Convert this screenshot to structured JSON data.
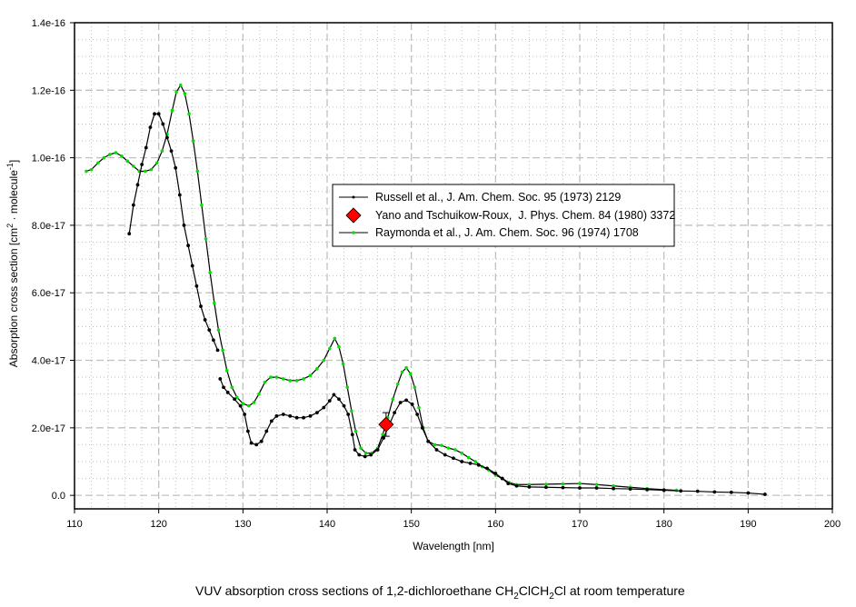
{
  "chart_data": {
    "type": "line",
    "xlabel": "Wavelength [nm]",
    "ylabel_main": "Absorption cross section [cm",
    "ylabel_sup1": "2",
    "ylabel_mid": " · molecule",
    "ylabel_sup2": "-1",
    "ylabel_end": "]",
    "caption_main": "VUV absorption cross sections of 1,2-dichloroethane CH",
    "caption_parts": [
      "2",
      "ClCH",
      "2",
      "Cl at room temperature"
    ],
    "xlim": [
      110,
      200
    ],
    "ylim": [
      -4e-18,
      1.4e-16
    ],
    "x_ticks": [
      "110",
      "120",
      "130",
      "140",
      "150",
      "160",
      "170",
      "180",
      "190",
      "200"
    ],
    "y_ticks": [
      "0.0",
      "2.0e-17",
      "4.0e-17",
      "6.0e-17",
      "8.0e-17",
      "1.0e-16",
      "1.2e-16",
      "1.4e-16"
    ],
    "grid": true,
    "legend_placement": "center-right",
    "colors": {
      "russell": "#000000",
      "yano": "#ff0000",
      "raymonda": "#00e000",
      "grid": "#c0c0c0"
    },
    "series": [
      {
        "name": "Russell et al., J. Am. Chem. Soc. 95 (1973) 2129",
        "segments": [
          [
            [
              116.5,
              7.75e-17
            ],
            [
              117,
              8.6e-17
            ],
            [
              117.5,
              9.2e-17
            ],
            [
              118,
              9.8e-17
            ],
            [
              118.5,
              1.03e-16
            ],
            [
              119,
              1.09e-16
            ],
            [
              119.5,
              1.13e-16
            ],
            [
              120,
              1.13e-16
            ],
            [
              120.5,
              1.1e-16
            ],
            [
              121,
              1.06e-16
            ],
            [
              121.5,
              1.02e-16
            ],
            [
              122,
              9.7e-17
            ],
            [
              122.5,
              8.9e-17
            ],
            [
              123,
              8e-17
            ],
            [
              123.5,
              7.4e-17
            ],
            [
              124,
              6.8e-17
            ],
            [
              124.5,
              6.2e-17
            ],
            [
              125,
              5.6e-17
            ],
            [
              125.5,
              5.2e-17
            ],
            [
              126,
              4.9e-17
            ],
            [
              126.5,
              4.6e-17
            ],
            [
              127,
              4.3e-17
            ]
          ],
          [
            [
              127.3,
              3.45e-17
            ],
            [
              127.7,
              3.2e-17
            ],
            [
              128.2,
              3.05e-17
            ],
            [
              129,
              2.85e-17
            ],
            [
              129.7,
              2.65e-17
            ],
            [
              130.2,
              2.4e-17
            ],
            [
              130.6,
              1.9e-17
            ],
            [
              131,
              1.55e-17
            ],
            [
              131.6,
              1.5e-17
            ],
            [
              132.2,
              1.6e-17
            ],
            [
              132.8,
              1.9e-17
            ],
            [
              133.4,
              2.2e-17
            ],
            [
              134,
              2.35e-17
            ],
            [
              134.8,
              2.4e-17
            ],
            [
              135.6,
              2.35e-17
            ],
            [
              136.4,
              2.3e-17
            ],
            [
              137.2,
              2.3e-17
            ],
            [
              138,
              2.35e-17
            ],
            [
              138.8,
              2.45e-17
            ],
            [
              139.6,
              2.6e-17
            ],
            [
              140.3,
              2.8e-17
            ],
            [
              140.8,
              2.98e-17
            ],
            [
              141.4,
              2.85e-17
            ],
            [
              142,
              2.65e-17
            ],
            [
              142.5,
              2.4e-17
            ],
            [
              143,
              1.8e-17
            ],
            [
              143.3,
              1.35e-17
            ],
            [
              143.8,
              1.2e-17
            ],
            [
              144.5,
              1.15e-17
            ],
            [
              145.2,
              1.2e-17
            ],
            [
              146,
              1.35e-17
            ],
            [
              146.7,
              1.7e-17
            ],
            [
              147.4,
              2.1e-17
            ],
            [
              148,
              2.45e-17
            ],
            [
              148.7,
              2.75e-17
            ],
            [
              149.4,
              2.82e-17
            ],
            [
              150.1,
              2.7e-17
            ],
            [
              150.7,
              2.4e-17
            ],
            [
              151.3,
              2e-17
            ],
            [
              152,
              1.6e-17
            ],
            [
              153,
              1.35e-17
            ],
            [
              154,
              1.2e-17
            ],
            [
              155,
              1.1e-17
            ],
            [
              156,
              1e-17
            ],
            [
              157,
              9.5e-18
            ],
            [
              158,
              9e-18
            ],
            [
              159,
              8e-18
            ],
            [
              160,
              6.5e-18
            ],
            [
              160.8,
              5e-18
            ],
            [
              161.5,
              3.5e-18
            ],
            [
              162.5,
              2.8e-18
            ],
            [
              164,
              2.5e-18
            ],
            [
              166,
              2.4e-18
            ],
            [
              168,
              2.3e-18
            ],
            [
              170,
              2.2e-18
            ],
            [
              172,
              2.2e-18
            ],
            [
              174,
              2e-18
            ],
            [
              176,
              1.9e-18
            ],
            [
              178,
              1.7e-18
            ],
            [
              180,
              1.5e-18
            ],
            [
              182,
              1.3e-18
            ],
            [
              184,
              1.2e-18
            ],
            [
              186,
              1e-18
            ],
            [
              188,
              9e-19
            ],
            [
              190,
              7e-19
            ],
            [
              192,
              3e-19
            ]
          ]
        ]
      },
      {
        "name": "Yano and Tschuikow-Roux,  J. Phys. Chem. 84 (1980) 3372",
        "points": [
          [
            147,
            2.1e-17
          ]
        ],
        "error": [
          3.5e-18
        ]
      },
      {
        "name": "Raymonda et al., J. Am. Chem. Soc. 96 (1974) 1708",
        "segments": [
          [
            [
              111.4,
              9.6e-17
            ],
            [
              112,
              9.65e-17
            ],
            [
              112.8,
              9.85e-17
            ],
            [
              113.5,
              1e-16
            ],
            [
              114.2,
              1.01e-16
            ],
            [
              114.9,
              1.015e-16
            ],
            [
              115.6,
              1.005e-16
            ],
            [
              116.3,
              9.9e-17
            ],
            [
              117,
              9.75e-17
            ],
            [
              117.7,
              9.6e-17
            ],
            [
              118.4,
              9.6e-17
            ],
            [
              119.1,
              9.65e-17
            ],
            [
              119.8,
              9.85e-17
            ],
            [
              120.4,
              1.02e-16
            ],
            [
              121,
              1.07e-16
            ],
            [
              121.6,
              1.14e-16
            ],
            [
              122.1,
              1.195e-16
            ],
            [
              122.6,
              1.215e-16
            ],
            [
              123.1,
              1.19e-16
            ],
            [
              123.6,
              1.13e-16
            ],
            [
              124.1,
              1.05e-16
            ],
            [
              124.6,
              9.6e-17
            ],
            [
              125.1,
              8.6e-17
            ],
            [
              125.6,
              7.6e-17
            ],
            [
              126.1,
              6.6e-17
            ],
            [
              126.6,
              5.7e-17
            ],
            [
              127.1,
              4.9e-17
            ],
            [
              127.6,
              4.3e-17
            ],
            [
              128.1,
              3.7e-17
            ],
            [
              128.7,
              3.2e-17
            ],
            [
              129.3,
              2.9e-17
            ],
            [
              130,
              2.72e-17
            ],
            [
              130.7,
              2.65e-17
            ],
            [
              131.3,
              2.75e-17
            ],
            [
              131.9,
              3e-17
            ],
            [
              132.6,
              3.35e-17
            ],
            [
              133.3,
              3.5e-17
            ],
            [
              134,
              3.5e-17
            ],
            [
              134.8,
              3.45e-17
            ],
            [
              135.6,
              3.4e-17
            ],
            [
              136.4,
              3.4e-17
            ],
            [
              137.2,
              3.45e-17
            ],
            [
              138,
              3.55e-17
            ],
            [
              138.8,
              3.75e-17
            ],
            [
              139.6,
              4e-17
            ],
            [
              140.3,
              4.35e-17
            ],
            [
              140.9,
              4.65e-17
            ],
            [
              141.4,
              4.4e-17
            ],
            [
              141.9,
              3.9e-17
            ],
            [
              142.4,
              3.2e-17
            ],
            [
              142.9,
              2.5e-17
            ],
            [
              143.4,
              1.9e-17
            ],
            [
              144,
              1.4e-17
            ],
            [
              144.6,
              1.25e-17
            ],
            [
              145.3,
              1.25e-17
            ],
            [
              146,
              1.4e-17
            ],
            [
              146.6,
              1.8e-17
            ],
            [
              147.2,
              2.3e-17
            ],
            [
              147.8,
              2.85e-17
            ],
            [
              148.4,
              3.3e-17
            ],
            [
              148.9,
              3.65e-17
            ],
            [
              149.4,
              3.78e-17
            ],
            [
              149.9,
              3.6e-17
            ],
            [
              150.4,
              3.2e-17
            ],
            [
              150.9,
              2.6e-17
            ],
            [
              151.4,
              2e-17
            ],
            [
              152,
              1.6e-17
            ],
            [
              152.8,
              1.5e-17
            ],
            [
              153.6,
              1.48e-17
            ],
            [
              154.4,
              1.4e-17
            ],
            [
              155.2,
              1.35e-17
            ],
            [
              156,
              1.25e-17
            ],
            [
              156.8,
              1.12e-17
            ],
            [
              157.6,
              1e-17
            ],
            [
              158.4,
              8.5e-18
            ],
            [
              159.2,
              7.5e-18
            ],
            [
              160,
              6e-18
            ],
            [
              160.8,
              5e-18
            ],
            [
              161.6,
              3.8e-18
            ],
            [
              162.5,
              3.2e-18
            ],
            [
              164,
              3.2e-18
            ],
            [
              166,
              3.3e-18
            ],
            [
              168,
              3.4e-18
            ],
            [
              170,
              3.5e-18
            ],
            [
              172,
              3.2e-18
            ],
            [
              174,
              2.8e-18
            ],
            [
              176,
              2.4e-18
            ],
            [
              178,
              2e-18
            ],
            [
              180,
              1.7e-18
            ],
            [
              181.5,
              1.5e-18
            ]
          ]
        ]
      }
    ]
  }
}
